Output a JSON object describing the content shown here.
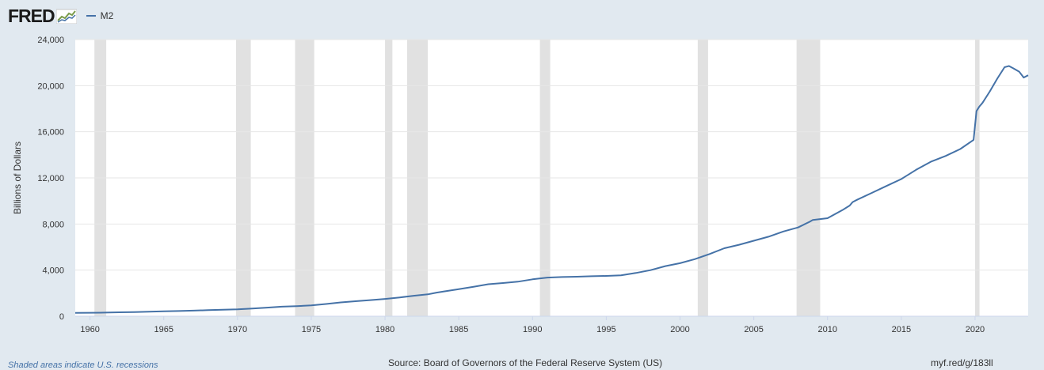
{
  "header": {
    "logo_text": "FRED",
    "logo_icon": "chart-line-icon",
    "legend_label": "M2"
  },
  "footer": {
    "recession_note": "Shaded areas indicate U.S. recessions",
    "source": "Source: Board of Governors of the Federal Reserve System (US)",
    "short_url": "myf.red/g/183ll"
  },
  "colors": {
    "series": "#4572a7",
    "recession": "#e1e1e1",
    "background": "#e1e9f0",
    "plot_bg": "#ffffff",
    "grid": "#e6e6e6"
  },
  "chart_data": {
    "type": "line",
    "title": "",
    "xlabel": "",
    "ylabel": "Billions of Dollars",
    "xlim": [
      1959.0,
      2023.6
    ],
    "ylim": [
      0,
      24000
    ],
    "x_ticks": [
      1960,
      1965,
      1970,
      1975,
      1980,
      1985,
      1990,
      1995,
      2000,
      2005,
      2010,
      2015,
      2020
    ],
    "y_ticks": [
      0,
      4000,
      8000,
      12000,
      16000,
      20000,
      24000
    ],
    "y_tick_labels": [
      "0",
      "4,000",
      "8,000",
      "12,000",
      "16,000",
      "20,000",
      "24,000"
    ],
    "grid": "horizontal",
    "legend_placement": "top-left",
    "recessions": [
      [
        1960.3,
        1961.1
      ],
      [
        1969.9,
        1970.9
      ],
      [
        1973.9,
        1975.2
      ],
      [
        1980.0,
        1980.5
      ],
      [
        1981.5,
        1982.9
      ],
      [
        1990.5,
        1991.2
      ],
      [
        2001.2,
        2001.9
      ],
      [
        2007.9,
        2009.5
      ],
      [
        2020.0,
        2020.3
      ]
    ],
    "series": [
      {
        "name": "M2",
        "x": [
          1959.0,
          1960,
          1961,
          1962,
          1963,
          1964,
          1965,
          1966,
          1967,
          1968,
          1969,
          1970,
          1971,
          1972,
          1973,
          1974,
          1975,
          1976,
          1977,
          1978,
          1979,
          1980,
          1981,
          1982,
          1982.9,
          1983.5,
          1984,
          1985,
          1986,
          1987,
          1988,
          1989,
          1990,
          1991,
          1992,
          1993,
          1994,
          1995,
          1996,
          1997,
          1998,
          1999,
          2000,
          2001,
          2002,
          2003,
          2004,
          2005,
          2006,
          2007,
          2008,
          2008.8,
          2009,
          2010,
          2011,
          2011.5,
          2011.7,
          2012,
          2013,
          2014,
          2015,
          2016,
          2017,
          2018,
          2019,
          2019.9,
          2020.1,
          2020.3,
          2020.5,
          2021.0,
          2021.5,
          2022.0,
          2022.3,
          2022.6,
          2023.0,
          2023.3,
          2023.6
        ],
        "values": [
          290,
          300,
          315,
          340,
          365,
          395,
          425,
          455,
          485,
          525,
          565,
          600,
          670,
          750,
          830,
          880,
          940,
          1060,
          1200,
          1300,
          1400,
          1500,
          1630,
          1780,
          1900,
          2050,
          2150,
          2350,
          2550,
          2780,
          2880,
          3000,
          3200,
          3350,
          3400,
          3430,
          3470,
          3500,
          3550,
          3750,
          4000,
          4350,
          4600,
          4950,
          5400,
          5900,
          6200,
          6550,
          6900,
          7350,
          7700,
          8200,
          8350,
          8500,
          9200,
          9600,
          9900,
          10100,
          10700,
          11300,
          11900,
          12700,
          13400,
          13900,
          14500,
          15300,
          17800,
          18200,
          18500,
          19500,
          20600,
          21600,
          21700,
          21500,
          21200,
          20700,
          20900
        ]
      }
    ]
  }
}
